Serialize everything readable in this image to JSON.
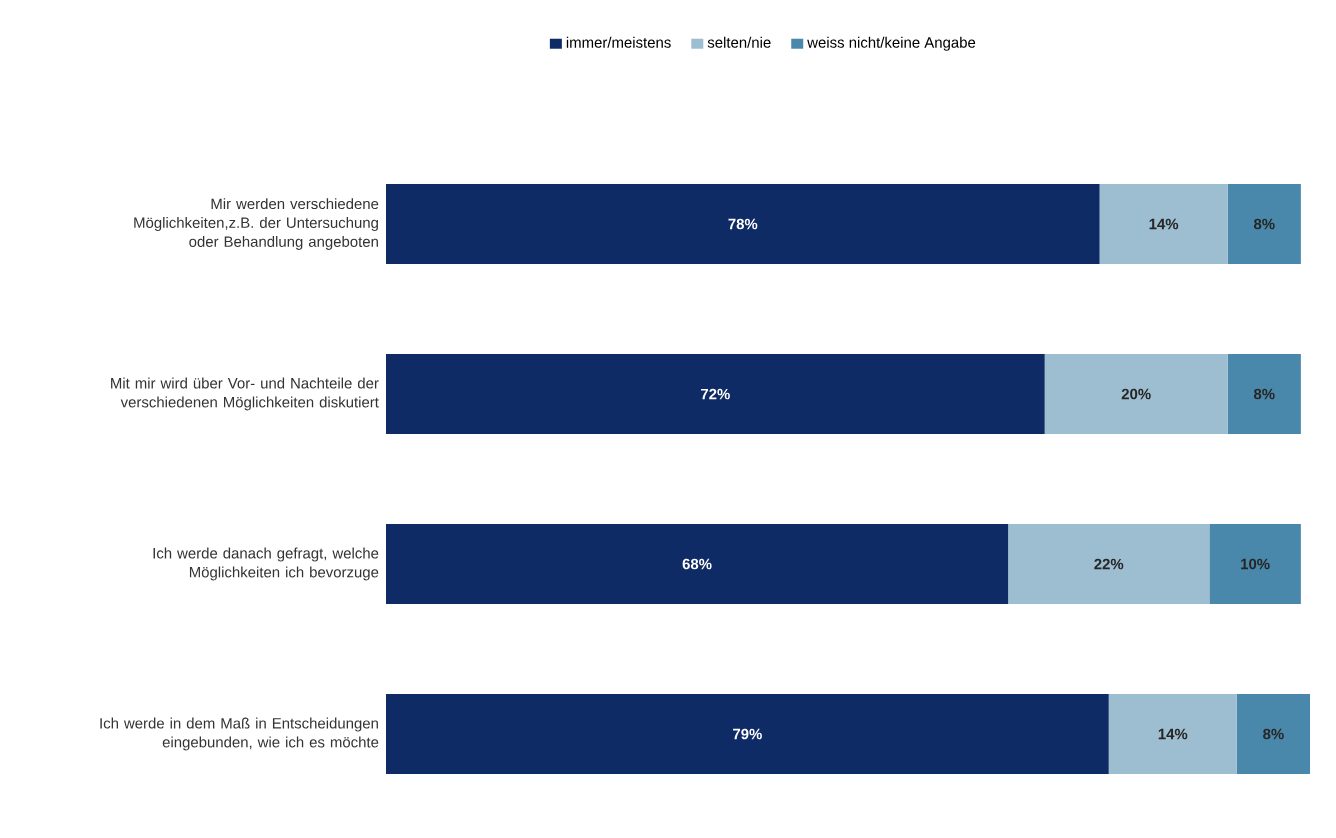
{
  "chart_data": {
    "type": "bar",
    "orientation": "horizontal",
    "stacked": true,
    "legend": "top",
    "tick_labels": "y",
    "categories": [
      "Mir werden verschiedene Möglichkeiten,z.B. der Untersuchung oder Behandlung angeboten",
      "Mit mir wird über Vor- und Nachteile der verschiedenen Möglichkeiten diskutiert",
      "Ich werde danach gefragt, welche Möglichkeiten ich bevorzuge",
      "Ich werde in dem Maß in Entscheidungen eingebunden, wie ich es möchte"
    ],
    "series": [
      {
        "name": "immer/meistens",
        "color": "#0f2b66",
        "values": [
          78,
          72,
          68,
          79
        ],
        "value_labels": [
          "78%",
          "72%",
          "68%",
          "79%"
        ]
      },
      {
        "name": "selten/nie",
        "color": "#9dbdd1",
        "values": [
          14,
          20,
          22,
          14
        ],
        "value_labels": [
          "14%",
          "20%",
          "22%",
          "14%"
        ]
      },
      {
        "name": "weiss nicht/keine Angabe",
        "color": "#4a88ab",
        "values": [
          8,
          8,
          10,
          8
        ],
        "value_labels": [
          "8%",
          "8%",
          "10%",
          "8%"
        ]
      }
    ]
  }
}
